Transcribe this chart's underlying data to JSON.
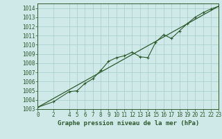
{
  "title": "Graphe pression niveau de la mer (hPa)",
  "bg_color": "#cfe8e8",
  "grid_color": "#a8cccc",
  "line_color": "#2d5a2d",
  "marker_color": "#2d5a2d",
  "xlim": [
    0,
    23
  ],
  "ylim": [
    1003,
    1014.5
  ],
  "yticks": [
    1003,
    1004,
    1005,
    1006,
    1007,
    1008,
    1009,
    1010,
    1011,
    1012,
    1013,
    1014
  ],
  "xticks": [
    0,
    2,
    4,
    5,
    6,
    7,
    8,
    9,
    10,
    11,
    12,
    13,
    14,
    15,
    16,
    17,
    18,
    19,
    20,
    21,
    22,
    23
  ],
  "trend_x": [
    0,
    23
  ],
  "trend_y": [
    1003.2,
    1014.2
  ],
  "data_x": [
    0,
    2,
    4,
    5,
    6,
    7,
    8,
    9,
    10,
    11,
    12,
    13,
    14,
    15,
    16,
    17,
    18,
    19,
    20,
    21,
    22,
    23
  ],
  "data_y": [
    1003.2,
    1003.8,
    1004.9,
    1005.0,
    1005.8,
    1006.3,
    1007.2,
    1008.2,
    1008.6,
    1008.8,
    1009.2,
    1008.7,
    1008.6,
    1010.3,
    1011.1,
    1010.7,
    1011.5,
    1012.3,
    1013.0,
    1013.5,
    1013.9,
    1014.2
  ],
  "tick_fontsize": 5.5,
  "label_fontsize": 6.5,
  "ytick_fontsize": 5.5
}
